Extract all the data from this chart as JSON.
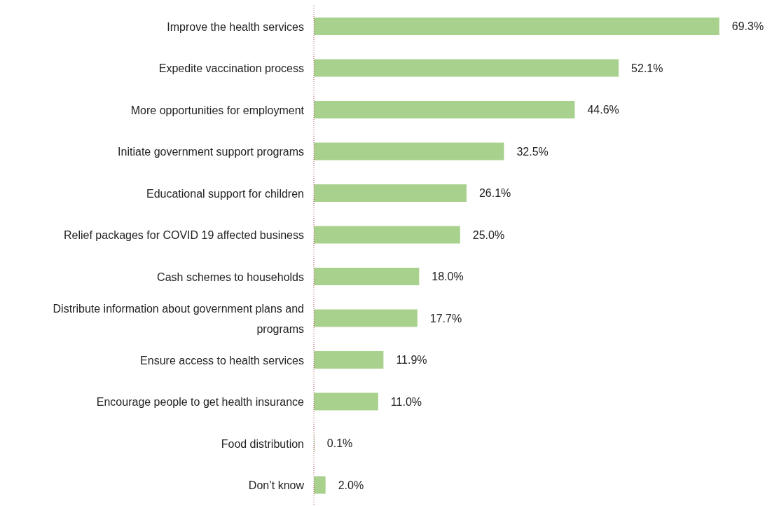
{
  "chart_data": {
    "type": "bar",
    "orientation": "horizontal",
    "categories": [
      "Improve the health services",
      "Expedite vaccination process",
      "More opportunities for employment",
      "Initiate government support programs",
      "Educational support for children",
      "Relief packages for COVID 19 affected business",
      "Cash schemes to households",
      "Distribute information about government plans and programs",
      "Ensure access to health services",
      "Encourage people to get health insurance",
      "Food distribution",
      "Don’t know"
    ],
    "values": [
      69.3,
      52.1,
      44.6,
      32.5,
      26.1,
      25.0,
      18.0,
      17.7,
      11.9,
      11.0,
      0.1,
      2.0
    ],
    "value_labels": [
      "69.3%",
      "52.1%",
      "44.6%",
      "32.5%",
      "26.1%",
      "25.0%",
      "18.0%",
      "17.7%",
      "11.9%",
      "11.0%",
      "0.1%",
      "2.0%"
    ],
    "color": "#a9d18e",
    "grid": false,
    "legend": false
  }
}
